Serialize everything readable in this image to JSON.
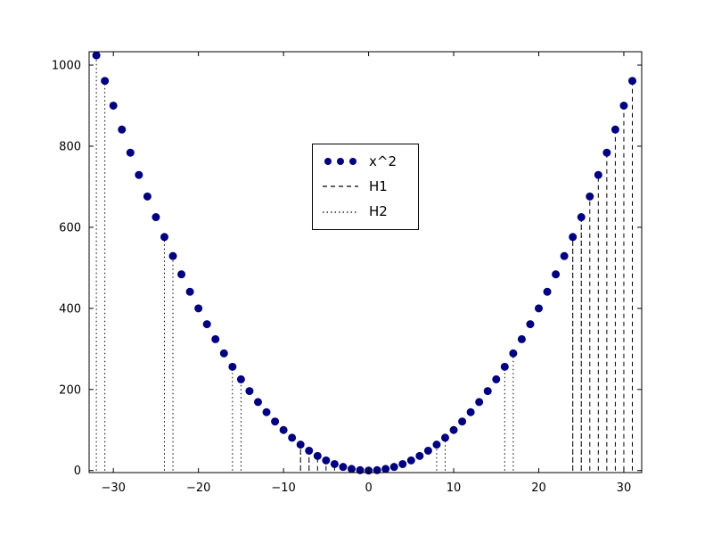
{
  "figure": {
    "background": "#ffffff",
    "frame_color": "#000000",
    "tick_color": "#000000"
  },
  "chart_data": {
    "type": "scatter",
    "title": "",
    "xlabel": "",
    "ylabel": "",
    "grid": false,
    "xlim": [
      -32.85,
      32.1
    ],
    "ylim": [
      -5,
      1033
    ],
    "x_ticks": [
      -30,
      -20,
      -10,
      0,
      10,
      20,
      30
    ],
    "y_ticks": [
      0,
      200,
      400,
      600,
      800,
      1000
    ],
    "legend_position": "upper-center-left",
    "series": [
      {
        "name": "x^2",
        "type": "scatter",
        "marker": "circle",
        "marker_size": 4,
        "color": "#000080",
        "x": [
          -32,
          -31,
          -30,
          -29,
          -28,
          -27,
          -26,
          -25,
          -24,
          -23,
          -22,
          -21,
          -20,
          -19,
          -18,
          -17,
          -16,
          -15,
          -14,
          -13,
          -12,
          -11,
          -10,
          -9,
          -8,
          -7,
          -6,
          -5,
          -4,
          -3,
          -2,
          -1,
          0,
          1,
          2,
          3,
          4,
          5,
          6,
          7,
          8,
          9,
          10,
          11,
          12,
          13,
          14,
          15,
          16,
          17,
          18,
          19,
          20,
          21,
          22,
          23,
          24,
          25,
          26,
          27,
          28,
          29,
          30,
          31
        ],
        "y": [
          1024,
          961,
          900,
          841,
          784,
          729,
          676,
          625,
          576,
          529,
          484,
          441,
          400,
          361,
          324,
          289,
          256,
          225,
          196,
          169,
          144,
          121,
          100,
          81,
          64,
          49,
          36,
          25,
          16,
          9,
          4,
          1,
          0,
          1,
          4,
          9,
          16,
          25,
          36,
          49,
          64,
          81,
          100,
          121,
          144,
          169,
          196,
          225,
          256,
          289,
          324,
          361,
          400,
          441,
          484,
          529,
          576,
          625,
          676,
          729,
          784,
          841,
          900,
          961
        ]
      },
      {
        "name": "H1",
        "type": "vlines",
        "linestyle": "dashed",
        "color": "#000000",
        "x": [
          -8,
          -7,
          -6,
          -5,
          -4,
          -3,
          -2,
          -1,
          24,
          25,
          26,
          27,
          28,
          29,
          30,
          31
        ],
        "ymin": 0,
        "ymax": [
          64,
          49,
          36,
          25,
          16,
          9,
          4,
          1,
          576,
          625,
          676,
          729,
          784,
          841,
          900,
          961
        ]
      },
      {
        "name": "H2",
        "type": "vlines",
        "linestyle": "dotted",
        "color": "#000000",
        "x": [
          -32,
          -31,
          -24,
          -23,
          -16,
          -15,
          -8,
          -7,
          0,
          1,
          8,
          9,
          16,
          17,
          24,
          25
        ],
        "ymin": 0,
        "ymax": [
          1024,
          961,
          576,
          529,
          256,
          225,
          64,
          49,
          0,
          1,
          64,
          81,
          256,
          289,
          576,
          625
        ]
      }
    ]
  }
}
